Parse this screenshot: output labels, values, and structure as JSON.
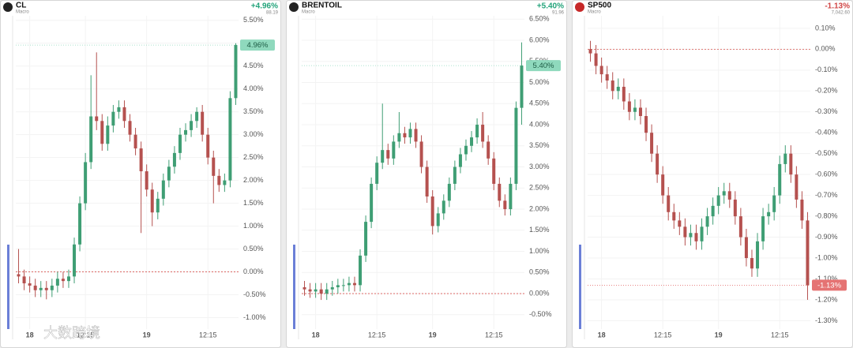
{
  "chart_data": [
    {
      "type": "candlestick",
      "title": "CL",
      "subtitle": "Macro",
      "change": "+4.96%",
      "price": "88.19",
      "change_color": "#22a37a",
      "up_color": "#3f9e74",
      "down_color": "#b5514f",
      "last_value": 4.96,
      "last_label": "4.96%",
      "last_bg": "#8fd9bd",
      "last_fg": "#1d5c45",
      "baseline": 0,
      "grid": true,
      "categories": [
        null,
        null,
        "18",
        null,
        null,
        null,
        null,
        null,
        null,
        null,
        null,
        null,
        "12:15",
        null,
        null,
        null,
        null,
        null,
        null,
        null,
        null,
        null,
        null,
        "19",
        null,
        null,
        null,
        null,
        null,
        null,
        null,
        null,
        null,
        null,
        "12:15",
        null,
        null,
        null,
        null,
        null
      ],
      "open": [
        -0.05,
        -0.1,
        -0.25,
        -0.3,
        -0.4,
        -0.35,
        -0.4,
        -0.3,
        -0.15,
        -0.2,
        -0.1,
        0.6,
        1.5,
        2.4,
        3.4,
        3.3,
        2.8,
        3.2,
        3.5,
        3.6,
        3.3,
        3.0,
        2.7,
        2.2,
        1.8,
        1.3,
        1.6,
        2.0,
        2.3,
        2.6,
        3.0,
        3.1,
        3.3,
        3.5,
        3.0,
        2.5,
        2.1,
        1.9,
        2.0,
        3.8
      ],
      "high": [
        0.5,
        0.05,
        -0.1,
        -0.15,
        -0.2,
        -0.2,
        -0.15,
        0.0,
        0.0,
        0.05,
        0.75,
        1.65,
        2.6,
        4.3,
        4.8,
        3.45,
        3.4,
        3.65,
        3.75,
        3.75,
        3.45,
        3.15,
        2.85,
        2.35,
        1.95,
        1.75,
        2.15,
        2.45,
        2.75,
        3.15,
        3.25,
        3.45,
        3.6,
        3.65,
        3.15,
        2.65,
        2.25,
        2.15,
        3.95,
        5.0
      ],
      "low": [
        -0.25,
        -0.4,
        -0.45,
        -0.55,
        -0.55,
        -0.6,
        -0.55,
        -0.45,
        -0.35,
        -0.35,
        -0.25,
        0.45,
        1.35,
        2.25,
        3.1,
        2.65,
        2.65,
        3.05,
        3.35,
        3.15,
        2.85,
        2.55,
        0.85,
        1.65,
        1.0,
        1.15,
        1.45,
        1.85,
        2.15,
        2.45,
        2.85,
        2.95,
        3.15,
        2.85,
        2.35,
        1.5,
        1.75,
        1.75,
        1.85,
        3.65
      ],
      "close": [
        -0.1,
        -0.25,
        -0.3,
        -0.4,
        -0.35,
        -0.4,
        -0.3,
        -0.15,
        -0.2,
        -0.1,
        0.6,
        1.5,
        2.4,
        3.4,
        3.3,
        2.8,
        3.2,
        3.5,
        3.6,
        3.3,
        3.0,
        2.7,
        2.2,
        1.8,
        1.3,
        1.6,
        2.0,
        2.3,
        2.6,
        3.0,
        3.1,
        3.3,
        3.5,
        3.0,
        2.5,
        2.1,
        1.9,
        2.0,
        3.8,
        4.96
      ],
      "ylim": [
        -1.25,
        5.6
      ],
      "yticks": [
        {
          "value": 5.5,
          "label": "5.50%"
        },
        {
          "value": 5.0,
          "label": "5.00%"
        },
        {
          "value": 4.5,
          "label": "4.50%"
        },
        {
          "value": 4.0,
          "label": "4.00%"
        },
        {
          "value": 3.5,
          "label": "3.50%"
        },
        {
          "value": 3.0,
          "label": "3.00%"
        },
        {
          "value": 2.5,
          "label": "2.50%"
        },
        {
          "value": 2.0,
          "label": "2.00%"
        },
        {
          "value": 1.5,
          "label": "1.50%"
        },
        {
          "value": 1.0,
          "label": "1.00%"
        },
        {
          "value": 0.5,
          "label": "0.50%"
        },
        {
          "value": 0,
          "label": "0.00%"
        },
        {
          "value": -0.5,
          "label": "-0.50%"
        },
        {
          "value": -1.0,
          "label": "-1.00%"
        }
      ]
    },
    {
      "type": "candlestick",
      "title": "BRENTOIL",
      "subtitle": "Macro",
      "change": "+5.40%",
      "price": "91.96",
      "change_color": "#22a37a",
      "up_color": "#3f9e74",
      "down_color": "#b5514f",
      "last_value": 5.4,
      "last_label": "5.40%",
      "last_bg": "#8fd9bd",
      "last_fg": "#1d5c45",
      "baseline": 0,
      "grid": true,
      "categories": [
        null,
        null,
        "18",
        null,
        null,
        null,
        null,
        null,
        null,
        null,
        null,
        null,
        null,
        "12:15",
        null,
        null,
        null,
        null,
        null,
        null,
        null,
        null,
        null,
        "19",
        null,
        null,
        null,
        null,
        null,
        null,
        null,
        null,
        null,
        null,
        "12:15",
        null,
        null,
        null,
        null,
        null
      ],
      "open": [
        0.15,
        0.1,
        0.05,
        0.1,
        0.0,
        0.1,
        0.15,
        0.2,
        0.2,
        0.25,
        0.2,
        0.9,
        1.7,
        2.6,
        3.1,
        3.4,
        3.2,
        3.6,
        3.8,
        3.7,
        3.9,
        3.6,
        3.0,
        2.3,
        1.6,
        1.9,
        2.2,
        2.6,
        3.0,
        3.3,
        3.5,
        3.7,
        4.0,
        3.6,
        3.2,
        2.6,
        2.2,
        2.0,
        2.6,
        4.4
      ],
      "high": [
        0.3,
        0.25,
        0.25,
        0.25,
        0.25,
        0.3,
        0.35,
        0.35,
        0.4,
        0.4,
        1.05,
        1.85,
        2.75,
        3.25,
        4.5,
        3.55,
        3.75,
        4.3,
        3.95,
        4.05,
        4.05,
        3.75,
        3.15,
        2.45,
        2.05,
        2.35,
        2.75,
        3.15,
        3.45,
        3.65,
        3.85,
        4.15,
        4.3,
        3.75,
        3.35,
        2.75,
        2.35,
        2.75,
        4.55,
        5.95
      ],
      "low": [
        -0.05,
        -0.1,
        -0.1,
        -0.15,
        -0.15,
        -0.05,
        0.0,
        0.05,
        0.05,
        0.05,
        0.05,
        0.75,
        1.55,
        2.45,
        2.95,
        3.05,
        3.05,
        3.45,
        3.55,
        3.55,
        3.45,
        2.85,
        2.15,
        1.4,
        1.45,
        1.75,
        2.05,
        2.45,
        2.85,
        3.15,
        3.35,
        3.55,
        3.45,
        3.05,
        2.45,
        2.05,
        1.85,
        1.85,
        2.45,
        4.0
      ],
      "close": [
        0.1,
        0.05,
        0.1,
        0.0,
        0.1,
        0.15,
        0.2,
        0.2,
        0.25,
        0.2,
        0.9,
        1.7,
        2.6,
        3.1,
        3.4,
        3.2,
        3.6,
        3.8,
        3.7,
        3.9,
        3.6,
        3.0,
        2.3,
        1.6,
        1.9,
        2.2,
        2.6,
        3.0,
        3.3,
        3.5,
        3.7,
        4.0,
        3.6,
        3.2,
        2.6,
        2.2,
        2.0,
        2.6,
        4.4,
        5.4
      ],
      "ylim": [
        -0.84,
        6.58
      ],
      "yticks": [
        {
          "value": 6.5,
          "label": "6.50%"
        },
        {
          "value": 6.0,
          "label": "6.00%"
        },
        {
          "value": 5.5,
          "label": "5.50%"
        },
        {
          "value": 5.0,
          "label": "5.00%"
        },
        {
          "value": 4.5,
          "label": "4.50%"
        },
        {
          "value": 4.0,
          "label": "4.00%"
        },
        {
          "value": 3.5,
          "label": "3.50%"
        },
        {
          "value": 3.0,
          "label": "3.00%"
        },
        {
          "value": 2.5,
          "label": "2.50%"
        },
        {
          "value": 2.0,
          "label": "2.00%"
        },
        {
          "value": 1.5,
          "label": "1.50%"
        },
        {
          "value": 1.0,
          "label": "1.00%"
        },
        {
          "value": 0.5,
          "label": "0.50%"
        },
        {
          "value": 0,
          "label": "0.00%"
        },
        {
          "value": -0.5,
          "label": "-0.50%"
        }
      ]
    },
    {
      "type": "candlestick",
      "title": "SP500",
      "subtitle": "Macro",
      "change": "-1.13%",
      "price": "7,042.60",
      "change_color": "#d04545",
      "up_color": "#3f9e74",
      "down_color": "#b5514f",
      "last_value": -1.13,
      "last_label": "-1.13%",
      "last_bg": "#e57373",
      "last_fg": "#ffffff",
      "baseline": 0,
      "grid": true,
      "categories": [
        null,
        null,
        "18",
        null,
        null,
        null,
        null,
        null,
        null,
        null,
        null,
        null,
        null,
        "12:15",
        null,
        null,
        null,
        null,
        null,
        null,
        null,
        null,
        null,
        "19",
        null,
        null,
        null,
        null,
        null,
        null,
        null,
        null,
        null,
        null,
        "12:15",
        null,
        null,
        null,
        null,
        null
      ],
      "open": [
        0.0,
        -0.02,
        -0.08,
        -0.12,
        -0.15,
        -0.2,
        -0.18,
        -0.25,
        -0.3,
        -0.28,
        -0.32,
        -0.4,
        -0.5,
        -0.6,
        -0.7,
        -0.78,
        -0.82,
        -0.85,
        -0.9,
        -0.88,
        -0.92,
        -0.85,
        -0.8,
        -0.75,
        -0.7,
        -0.68,
        -0.72,
        -0.8,
        -0.9,
        -1.0,
        -1.05,
        -0.92,
        -0.8,
        -0.78,
        -0.7,
        -0.55,
        -0.5,
        -0.6,
        -0.72,
        -0.82
      ],
      "high": [
        0.04,
        0.02,
        -0.04,
        -0.08,
        -0.11,
        -0.14,
        -0.14,
        -0.21,
        -0.24,
        -0.24,
        -0.28,
        -0.36,
        -0.46,
        -0.56,
        -0.66,
        -0.74,
        -0.78,
        -0.81,
        -0.84,
        -0.84,
        -0.81,
        -0.76,
        -0.71,
        -0.66,
        -0.64,
        -0.64,
        -0.68,
        -0.76,
        -0.86,
        -0.96,
        -0.88,
        -0.76,
        -0.74,
        -0.66,
        -0.51,
        -0.46,
        -0.46,
        -0.56,
        -0.68,
        -0.78
      ],
      "low": [
        -0.06,
        -0.12,
        -0.16,
        -0.19,
        -0.24,
        -0.24,
        -0.29,
        -0.34,
        -0.34,
        -0.36,
        -0.44,
        -0.54,
        -0.64,
        -0.74,
        -0.82,
        -0.86,
        -0.89,
        -0.94,
        -0.94,
        -0.96,
        -0.96,
        -0.89,
        -0.84,
        -0.79,
        -0.74,
        -0.76,
        -0.84,
        -0.94,
        -1.04,
        -1.09,
        -1.09,
        -0.96,
        -0.84,
        -0.82,
        -0.74,
        -0.59,
        -0.64,
        -0.76,
        -0.86,
        -1.2
      ],
      "close": [
        -0.02,
        -0.08,
        -0.12,
        -0.15,
        -0.2,
        -0.18,
        -0.25,
        -0.3,
        -0.28,
        -0.32,
        -0.4,
        -0.5,
        -0.6,
        -0.7,
        -0.78,
        -0.82,
        -0.85,
        -0.9,
        -0.88,
        -0.92,
        -0.85,
        -0.8,
        -0.75,
        -0.7,
        -0.68,
        -0.72,
        -0.8,
        -0.9,
        -1.0,
        -1.05,
        -0.92,
        -0.8,
        -0.78,
        -0.7,
        -0.55,
        -0.5,
        -0.6,
        -0.72,
        -0.82,
        -1.13
      ],
      "ylim": [
        -1.34,
        0.16
      ],
      "yticks": [
        {
          "value": 0.1,
          "label": "0.10%"
        },
        {
          "value": 0,
          "label": "0.00%"
        },
        {
          "value": -0.1,
          "label": "-0.10%"
        },
        {
          "value": -0.2,
          "label": "-0.20%"
        },
        {
          "value": -0.3,
          "label": "-0.30%"
        },
        {
          "value": -0.4,
          "label": "-0.40%"
        },
        {
          "value": -0.5,
          "label": "-0.50%"
        },
        {
          "value": -0.6,
          "label": "-0.60%"
        },
        {
          "value": -0.7,
          "label": "-0.70%"
        },
        {
          "value": -0.8,
          "label": "-0.80%"
        },
        {
          "value": -0.9,
          "label": "-0.90%"
        },
        {
          "value": -1.0,
          "label": "-1.00%"
        },
        {
          "value": -1.1,
          "label": "-1.10%"
        },
        {
          "value": -1.2,
          "label": "-1.20%"
        },
        {
          "value": -1.3,
          "label": "-1.30%"
        }
      ]
    }
  ],
  "watermark": "大数跨境"
}
